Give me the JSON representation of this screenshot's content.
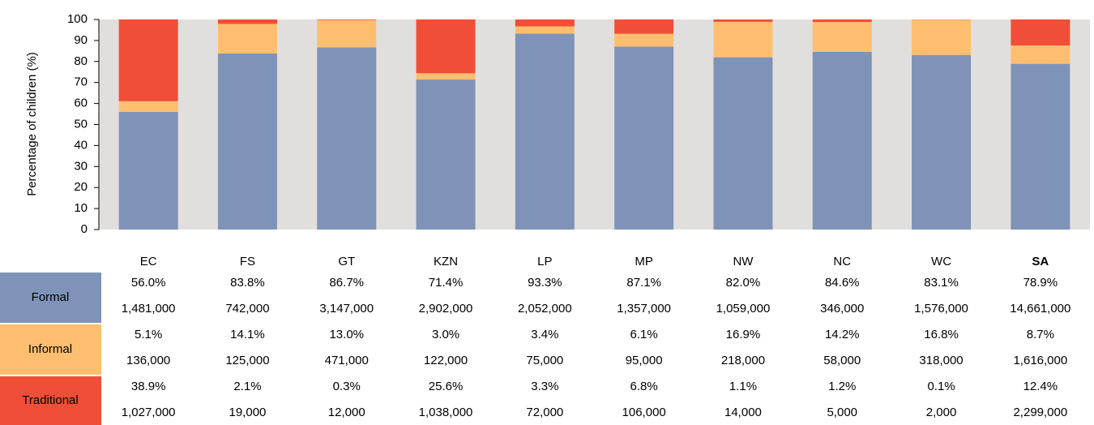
{
  "chart_data": {
    "type": "bar",
    "stacked": true,
    "y_label": "Percentage of children (%)",
    "categories": [
      "EC",
      "FS",
      "GT",
      "KZN",
      "LP",
      "MP",
      "NW",
      "NC",
      "WC",
      "SA"
    ],
    "ylim": [
      0,
      100
    ],
    "yticks": [
      0,
      10,
      20,
      30,
      40,
      50,
      60,
      70,
      80,
      90,
      100
    ],
    "background": "#e1dfdd",
    "series": [
      {
        "name": "Formal",
        "color": "#7f93b8",
        "values": [
          56.0,
          83.8,
          86.7,
          71.4,
          93.3,
          87.1,
          82.0,
          84.6,
          83.1,
          78.9
        ],
        "value_labels": [
          "56.0%",
          "83.8%",
          "86.7%",
          "71.4%",
          "93.3%",
          "87.1%",
          "82.0%",
          "84.6%",
          "83.1%",
          "78.9%"
        ],
        "counts": [
          "1,481,000",
          "742,000",
          "3,147,000",
          "2,902,000",
          "2,052,000",
          "1,357,000",
          "1,059,000",
          "346,000",
          "1,576,000",
          "14,661,000"
        ]
      },
      {
        "name": "Informal",
        "color": "#fdbf6f",
        "values": [
          5.1,
          14.1,
          13.0,
          3.0,
          3.4,
          6.1,
          16.9,
          14.2,
          16.8,
          8.7
        ],
        "value_labels": [
          "5.1%",
          "14.1%",
          "13.0%",
          "3.0%",
          "3.4%",
          "6.1%",
          "16.9%",
          "14.2%",
          "16.8%",
          "8.7%"
        ],
        "counts": [
          "136,000",
          "125,000",
          "471,000",
          "122,000",
          "75,000",
          "95,000",
          "218,000",
          "58,000",
          "318,000",
          "1,616,000"
        ]
      },
      {
        "name": "Traditional",
        "color": "#f04e37",
        "values": [
          38.9,
          2.1,
          0.3,
          25.6,
          3.3,
          6.8,
          1.1,
          1.2,
          0.1,
          12.4
        ],
        "value_labels": [
          "38.9%",
          "2.1%",
          "0.3%",
          "25.6%",
          "3.3%",
          "6.8%",
          "1.1%",
          "1.2%",
          "0.1%",
          "12.4%"
        ],
        "counts": [
          "1,027,000",
          "19,000",
          "12,000",
          "1,038,000",
          "72,000",
          "106,000",
          "14,000",
          "5,000",
          "2,000",
          "2,299,000"
        ]
      }
    ]
  }
}
